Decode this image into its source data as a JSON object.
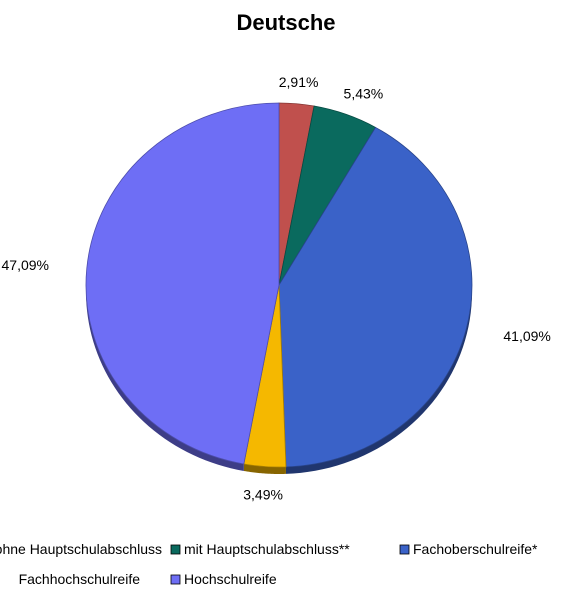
{
  "chart_data": {
    "type": "pie",
    "title": "Deutsche",
    "shape": "3d-pie",
    "legend_position": "bottom",
    "categories": [
      "ohne Hauptschulabschluss",
      "mit Hauptschulabschluss**",
      "Fachoberschulreife*",
      "Fachhochschulreife",
      "Hochschulreife"
    ],
    "values": [
      2.91,
      5.43,
      41.09,
      3.49,
      47.09
    ],
    "value_labels": [
      "2,91%",
      "5,43%",
      "41,09%",
      "3,49%",
      "47,09%"
    ],
    "colors": [
      "#c0504d",
      "#0a6a5e",
      "#3a62c8",
      "#f5b800",
      "#6e6ef5"
    ]
  }
}
